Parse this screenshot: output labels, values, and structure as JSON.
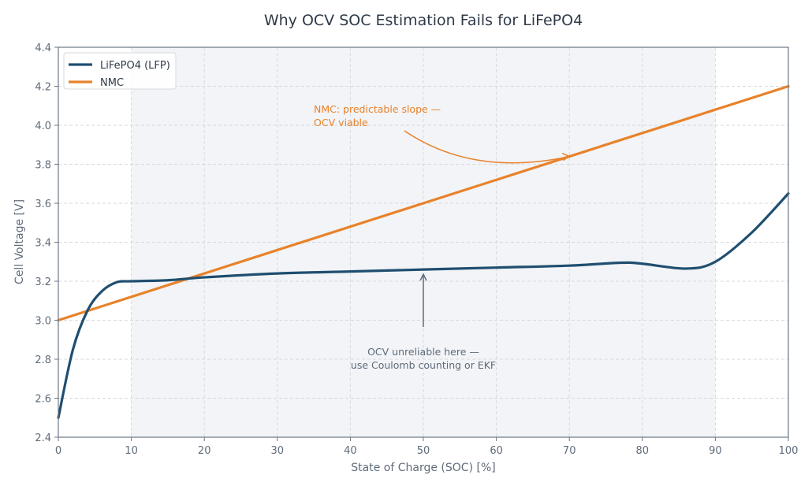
{
  "chart_data": {
    "type": "line",
    "title": "Why OCV SOC Estimation Fails for LiFePO4",
    "xlabel": "State of Charge (SOC) [%]",
    "ylabel": "Cell Voltage [V]",
    "xlim": [
      0,
      100
    ],
    "ylim": [
      2.4,
      4.4
    ],
    "xticks": [
      0,
      10,
      20,
      30,
      40,
      50,
      60,
      70,
      80,
      90,
      100
    ],
    "yticks": [
      "2.4",
      "2.6",
      "2.8",
      "3.0",
      "3.2",
      "3.4",
      "3.6",
      "3.8",
      "4.0",
      "4.2",
      "4.4"
    ],
    "grid": true,
    "legend_position": "top-left",
    "shaded_region": [
      10,
      90
    ],
    "series": [
      {
        "name": "LiFePO4 (LFP)",
        "color": "#1f4e70",
        "x": [
          0,
          2,
          4,
          6,
          8,
          10,
          15,
          20,
          30,
          40,
          50,
          60,
          70,
          77,
          80,
          86,
          90,
          95,
          100
        ],
        "y": [
          2.5,
          2.85,
          3.05,
          3.15,
          3.195,
          3.2,
          3.205,
          3.22,
          3.24,
          3.25,
          3.26,
          3.27,
          3.28,
          3.295,
          3.29,
          3.265,
          3.3,
          3.45,
          3.65
        ]
      },
      {
        "name": "NMC",
        "color": "#e8822a",
        "x": [
          0,
          100
        ],
        "y": [
          3.0,
          4.2
        ]
      }
    ],
    "annotations": [
      {
        "lines": [
          "NMC: predictable slope —",
          "OCV viable"
        ],
        "color": "#e8822a",
        "points_to": [
          70,
          3.84
        ]
      },
      {
        "lines": [
          "OCV unreliable here —",
          "use Coulomb counting or EKF"
        ],
        "color": "#5f6b7a",
        "points_to": [
          50,
          3.26
        ]
      }
    ]
  }
}
